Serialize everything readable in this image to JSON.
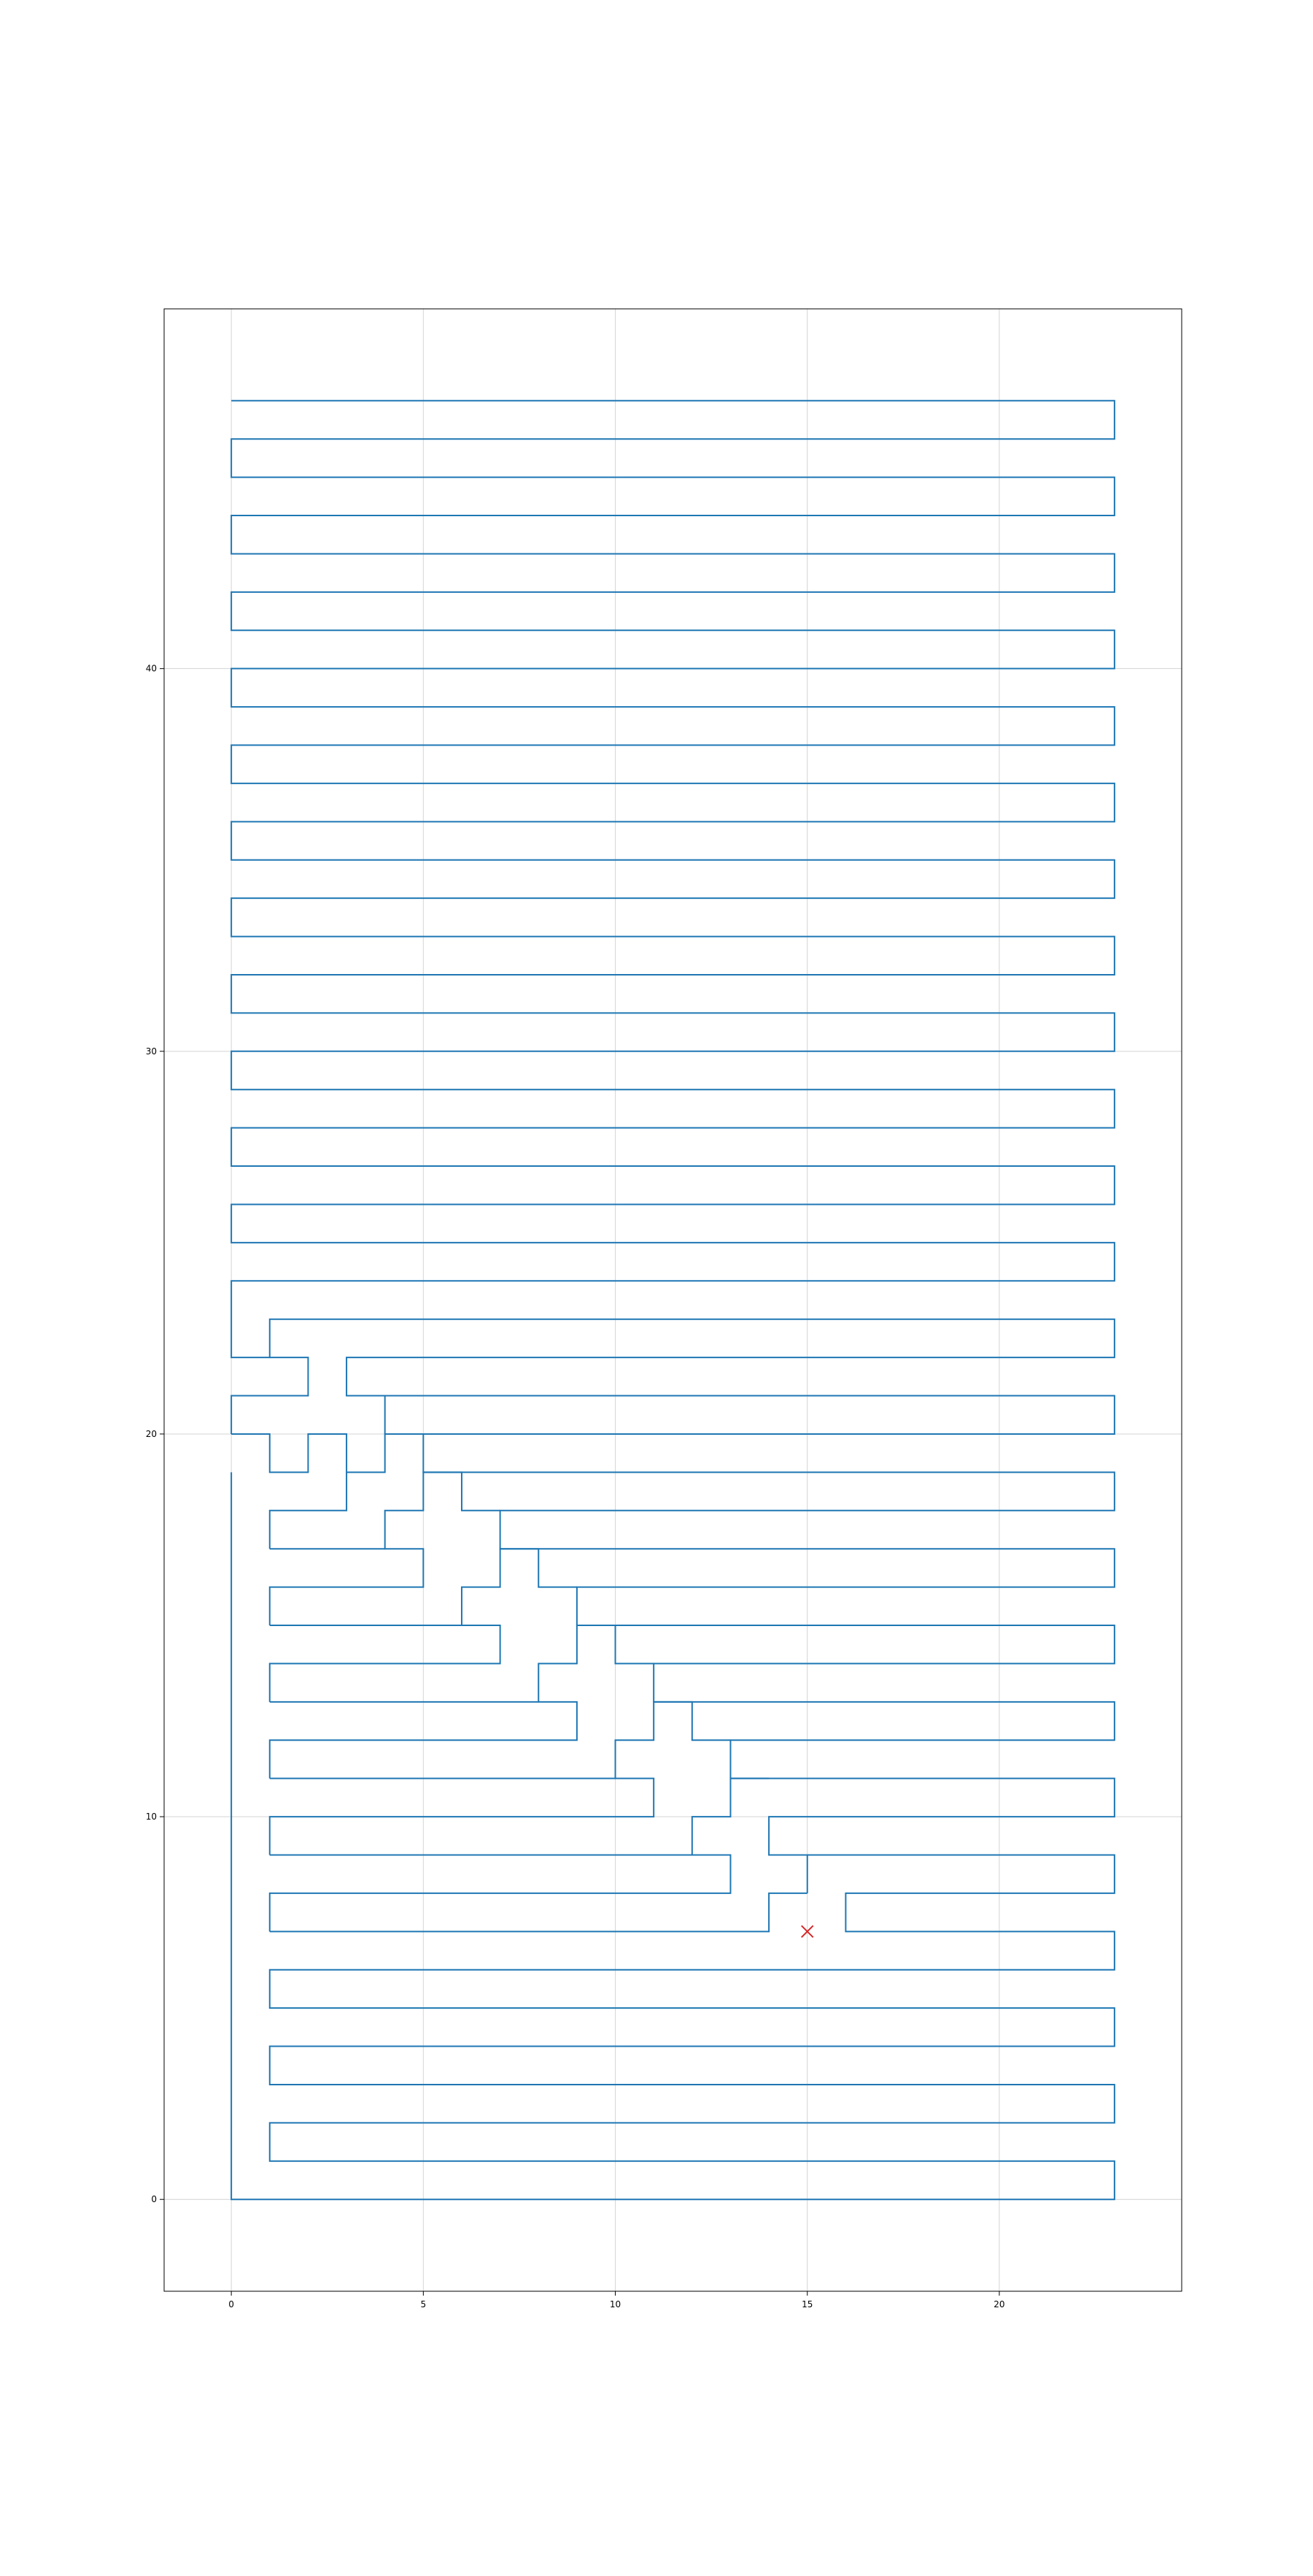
{
  "chart_data": {
    "type": "line",
    "title": "",
    "xlabel": "",
    "ylabel": "",
    "xlim": [
      -1.75,
      24.75
    ],
    "ylim": [
      -2.4,
      49.4
    ],
    "grid": true,
    "xticks": [
      0,
      5,
      10,
      15,
      20
    ],
    "yticks": [
      0,
      10,
      20,
      30,
      40
    ],
    "colors": {
      "path": "#1f77b4",
      "marker": "#d62728",
      "grid": "#b0b0b0",
      "frame": "#000000"
    },
    "series": [
      {
        "type": "line",
        "points": [
          [
            0,
            19
          ],
          [
            0,
            0
          ],
          [
            23,
            0
          ],
          [
            23,
            1
          ],
          [
            1,
            1
          ],
          [
            1,
            2
          ],
          [
            23,
            2
          ],
          [
            23,
            3
          ],
          [
            1,
            3
          ],
          [
            1,
            4
          ],
          [
            23,
            4
          ],
          [
            23,
            5
          ],
          [
            1,
            5
          ],
          [
            1,
            6
          ],
          [
            23,
            6
          ],
          [
            23,
            7
          ],
          [
            16,
            7
          ],
          [
            16,
            8
          ],
          [
            23,
            8
          ],
          [
            23,
            9
          ],
          [
            14,
            9
          ],
          [
            14,
            10
          ],
          [
            23,
            10
          ],
          [
            23,
            11
          ],
          [
            13,
            11
          ],
          [
            13,
            12
          ],
          [
            23,
            12
          ],
          [
            23,
            13
          ],
          [
            11,
            13
          ],
          [
            11,
            14
          ],
          [
            23,
            14
          ],
          [
            23,
            15
          ],
          [
            9,
            15
          ],
          [
            9,
            16
          ],
          [
            23,
            16
          ],
          [
            23,
            17
          ],
          [
            7,
            17
          ],
          [
            7,
            18
          ],
          [
            23,
            18
          ],
          [
            23,
            19
          ],
          [
            5,
            19
          ],
          [
            5,
            20
          ],
          [
            23,
            20
          ],
          [
            23,
            21
          ],
          [
            3,
            21
          ],
          [
            3,
            22
          ],
          [
            23,
            22
          ],
          [
            23,
            23
          ],
          [
            1,
            23
          ],
          [
            1,
            22
          ],
          [
            0,
            22
          ],
          [
            0,
            24
          ],
          [
            23,
            24
          ],
          [
            23,
            25
          ],
          [
            0,
            25
          ],
          [
            0,
            26
          ],
          [
            23,
            26
          ],
          [
            23,
            27
          ],
          [
            0,
            27
          ],
          [
            0,
            28
          ],
          [
            23,
            28
          ],
          [
            23,
            29
          ],
          [
            0,
            29
          ],
          [
            0,
            30
          ],
          [
            23,
            30
          ],
          [
            23,
            31
          ],
          [
            0,
            31
          ],
          [
            0,
            32
          ],
          [
            23,
            32
          ],
          [
            23,
            33
          ],
          [
            0,
            33
          ],
          [
            0,
            34
          ],
          [
            23,
            34
          ],
          [
            23,
            35
          ],
          [
            0,
            35
          ],
          [
            0,
            36
          ],
          [
            23,
            36
          ],
          [
            23,
            37
          ],
          [
            0,
            37
          ],
          [
            0,
            38
          ],
          [
            23,
            38
          ],
          [
            23,
            39
          ],
          [
            0,
            39
          ],
          [
            0,
            40
          ],
          [
            23,
            40
          ],
          [
            23,
            41
          ],
          [
            0,
            41
          ],
          [
            0,
            42
          ],
          [
            23,
            42
          ],
          [
            23,
            43
          ],
          [
            0,
            43
          ],
          [
            0,
            44
          ],
          [
            23,
            44
          ],
          [
            23,
            45
          ],
          [
            0,
            45
          ],
          [
            0,
            46
          ],
          [
            23,
            46
          ],
          [
            23,
            47
          ],
          [
            0,
            47
          ]
        ]
      },
      {
        "type": "line",
        "points": [
          [
            15,
            8
          ],
          [
            15,
            9
          ],
          [
            14,
            9
          ]
        ]
      },
      {
        "type": "line",
        "points": [
          [
            0,
            20
          ],
          [
            0,
            21
          ],
          [
            2,
            21
          ],
          [
            2,
            22
          ],
          [
            1,
            22
          ]
        ]
      },
      {
        "type": "line",
        "points": [
          [
            0,
            20
          ],
          [
            1,
            20
          ],
          [
            1,
            19
          ],
          [
            2,
            19
          ],
          [
            2,
            20
          ],
          [
            3,
            20
          ],
          [
            3,
            19
          ],
          [
            4,
            19
          ],
          [
            4,
            20
          ],
          [
            5,
            20
          ]
        ]
      },
      {
        "type": "line",
        "points": [
          [
            1,
            7
          ],
          [
            14,
            7
          ],
          [
            14,
            8
          ],
          [
            15,
            8
          ]
        ]
      },
      {
        "type": "line",
        "points": [
          [
            1,
            7
          ],
          [
            1,
            8
          ],
          [
            13,
            8
          ],
          [
            13,
            9
          ],
          [
            12,
            9
          ],
          [
            12,
            10
          ],
          [
            13,
            10
          ],
          [
            13,
            11
          ],
          [
            14,
            11
          ]
        ]
      },
      {
        "type": "line",
        "points": [
          [
            1,
            9
          ],
          [
            12,
            9
          ]
        ]
      },
      {
        "type": "line",
        "points": [
          [
            1,
            9
          ],
          [
            1,
            10
          ],
          [
            11,
            10
          ],
          [
            11,
            11
          ],
          [
            10,
            11
          ],
          [
            10,
            12
          ],
          [
            11,
            12
          ],
          [
            11,
            13
          ],
          [
            12,
            13
          ],
          [
            12,
            12
          ],
          [
            13,
            12
          ]
        ]
      },
      {
        "type": "line",
        "points": [
          [
            1,
            11
          ],
          [
            10,
            11
          ]
        ]
      },
      {
        "type": "line",
        "points": [
          [
            1,
            11
          ],
          [
            1,
            12
          ],
          [
            9,
            12
          ],
          [
            9,
            13
          ],
          [
            8,
            13
          ],
          [
            8,
            14
          ],
          [
            9,
            14
          ],
          [
            9,
            15
          ],
          [
            10,
            15
          ],
          [
            10,
            14
          ],
          [
            11,
            14
          ]
        ]
      },
      {
        "type": "line",
        "points": [
          [
            1,
            13
          ],
          [
            8,
            13
          ]
        ]
      },
      {
        "type": "line",
        "points": [
          [
            1,
            13
          ],
          [
            1,
            14
          ],
          [
            7,
            14
          ],
          [
            7,
            15
          ],
          [
            6,
            15
          ],
          [
            6,
            16
          ],
          [
            7,
            16
          ],
          [
            7,
            17
          ],
          [
            8,
            17
          ],
          [
            8,
            16
          ],
          [
            9,
            16
          ]
        ]
      },
      {
        "type": "line",
        "points": [
          [
            1,
            15
          ],
          [
            6,
            15
          ]
        ]
      },
      {
        "type": "line",
        "points": [
          [
            1,
            15
          ],
          [
            1,
            16
          ],
          [
            5,
            16
          ],
          [
            5,
            17
          ],
          [
            4,
            17
          ],
          [
            4,
            18
          ],
          [
            5,
            18
          ],
          [
            5,
            19
          ],
          [
            6,
            19
          ],
          [
            6,
            18
          ],
          [
            7,
            18
          ]
        ]
      },
      {
        "type": "line",
        "points": [
          [
            1,
            17
          ],
          [
            4,
            17
          ]
        ]
      },
      {
        "type": "line",
        "points": [
          [
            1,
            17
          ],
          [
            1,
            18
          ],
          [
            3,
            18
          ],
          [
            3,
            19
          ]
        ]
      },
      {
        "type": "line",
        "points": [
          [
            4,
            20
          ],
          [
            4,
            21
          ]
        ]
      }
    ],
    "markers": [
      {
        "x": 15,
        "y": 7,
        "symbol": "x"
      }
    ]
  }
}
